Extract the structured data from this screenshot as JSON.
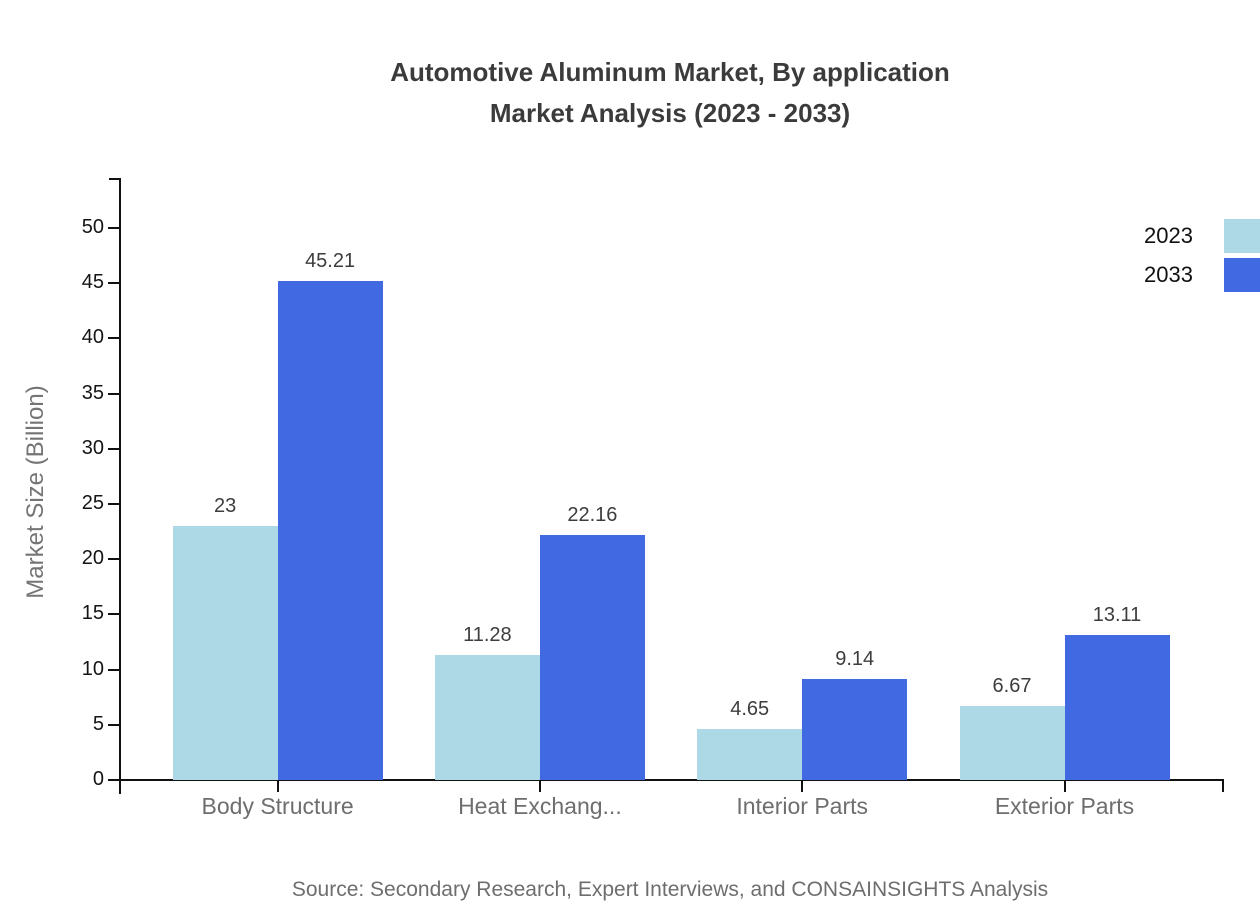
{
  "title": {
    "line1": "Automotive Aluminum Market, By application",
    "line2": "Market Analysis (2023 - 2033)"
  },
  "source": "Source: Secondary Research, Expert Interviews, and CONSAINSIGHTS Analysis",
  "chart_data": {
    "type": "bar",
    "title": "Automotive Aluminum Market, By application Market Analysis (2023 - 2033)",
    "categories": [
      "Body Structure",
      "Heat Exchang...",
      "Interior Parts",
      "Exterior Parts"
    ],
    "series": [
      {
        "name": "2023",
        "color": "#ADD8E6",
        "values": [
          23,
          11.28,
          4.65,
          6.67
        ]
      },
      {
        "name": "2033",
        "color": "#4169E1",
        "values": [
          45.21,
          22.16,
          9.14,
          13.11
        ]
      }
    ],
    "xlabel": "",
    "ylabel": "Market Size (Billion)",
    "ylim": [
      0,
      50
    ],
    "ytick_step": 5,
    "grid": false,
    "legend_position": "top-right",
    "value_labels": true
  }
}
